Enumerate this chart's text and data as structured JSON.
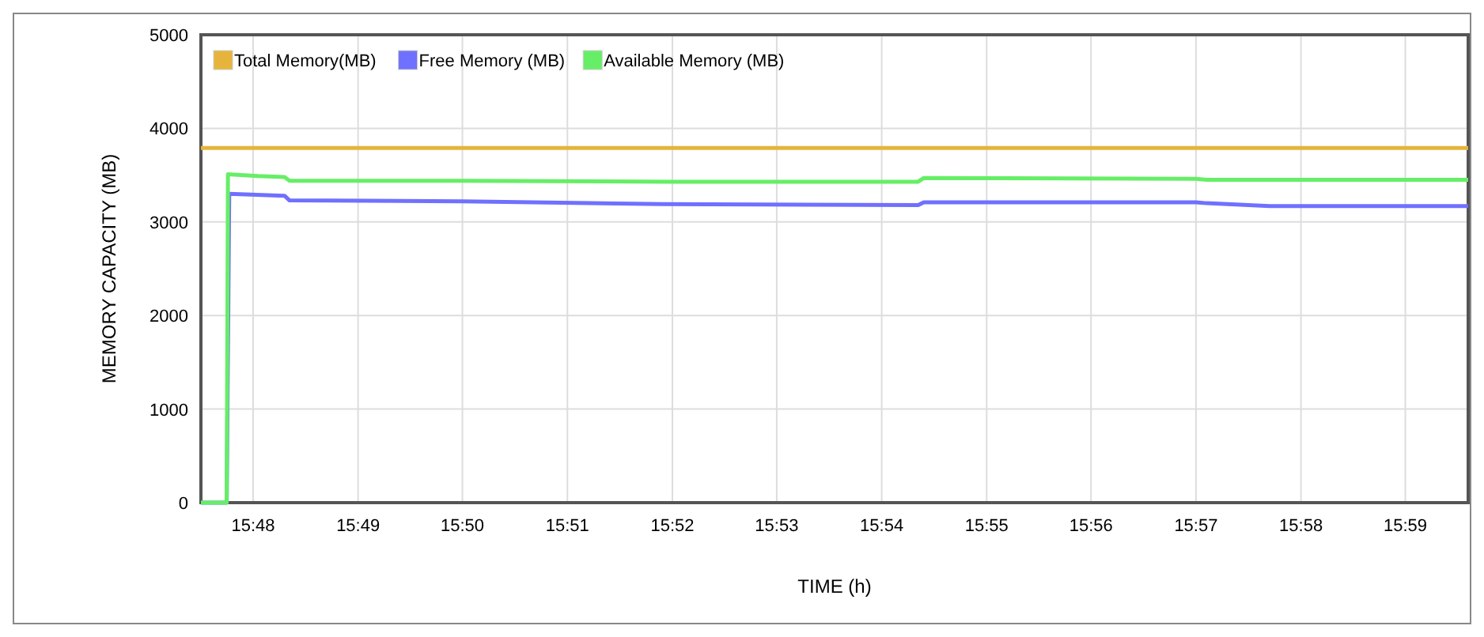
{
  "chart_data": {
    "type": "line",
    "xlabel": "TIME (h)",
    "ylabel": "MEMORY CAPACITY (MB)",
    "xlim": [
      15.7917,
      15.9933
    ],
    "ylim": [
      0,
      5000
    ],
    "yticks": [
      0,
      1000,
      2000,
      3000,
      4000,
      5000
    ],
    "xticks": [
      {
        "value": 15.8,
        "label": "15:48"
      },
      {
        "value": 15.8167,
        "label": "15:49"
      },
      {
        "value": 15.8333,
        "label": "15:50"
      },
      {
        "value": 15.85,
        "label": "15:51"
      },
      {
        "value": 15.8667,
        "label": "15:52"
      },
      {
        "value": 15.8833,
        "label": "15:53"
      },
      {
        "value": 15.9,
        "label": "15:54"
      },
      {
        "value": 15.9167,
        "label": "15:55"
      },
      {
        "value": 15.9333,
        "label": "15:56"
      },
      {
        "value": 15.95,
        "label": "15:57"
      },
      {
        "value": 15.9667,
        "label": "15:58"
      },
      {
        "value": 15.9833,
        "label": "15:59"
      }
    ],
    "grid": true,
    "legend": "top left",
    "marker": "none",
    "line_style": "solid",
    "series": [
      {
        "name": "Total Memory(MB)",
        "color": "#e6b43c",
        "x": [
          15.7917,
          15.9933
        ],
        "values": [
          3790,
          3790
        ]
      },
      {
        "name": "Free Memory (MB)",
        "color": "#7070ff",
        "x": [
          15.7917,
          15.7958,
          15.7962,
          15.805,
          15.8058,
          15.8333,
          15.865,
          15.9058,
          15.9067,
          15.95,
          15.9517,
          15.9617,
          15.9933
        ],
        "values": [
          0,
          0,
          3300,
          3280,
          3230,
          3220,
          3190,
          3180,
          3210,
          3210,
          3200,
          3170,
          3170
        ]
      },
      {
        "name": "Available Memory (MB)",
        "color": "#66ee66",
        "x": [
          15.7917,
          15.7958,
          15.796,
          15.8008,
          15.805,
          15.8058,
          15.8333,
          15.8667,
          15.9058,
          15.9067,
          15.95,
          15.9517,
          15.9933
        ],
        "values": [
          0,
          0,
          3510,
          3490,
          3480,
          3440,
          3440,
          3430,
          3430,
          3470,
          3460,
          3450,
          3450
        ]
      }
    ]
  }
}
